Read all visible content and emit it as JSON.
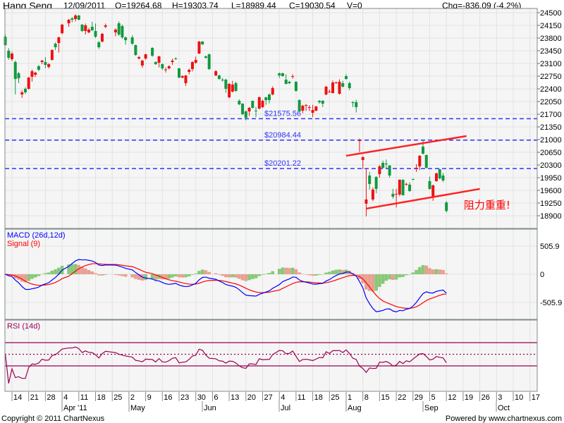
{
  "header": {
    "title": "Hang Seng",
    "date": "12/09/2011",
    "open": "O=19264.68",
    "high": "H=19303.74",
    "low": "L=18989.44",
    "close": "C=19030.54",
    "volume": "V=0",
    "change": "Chg=-836.09 (-4.2%)"
  },
  "footer": {
    "copyright": "Copyright © 2011 ChartNexus",
    "powered": "Powered by www.chartnexus.com"
  },
  "colors": {
    "up": "#ee1111",
    "down": "#109a40",
    "level_line": "#3333ff",
    "trend_line": "#ff2222",
    "macd": "#0000ff",
    "signal": "#ff0000",
    "hist_rise": "#88c878",
    "hist_fall": "#e8a090",
    "rsi": "#990055"
  },
  "chart_data": [
    {
      "type": "candlestick",
      "panel": "price",
      "ylim": [
        18900,
        24500
      ],
      "yticks": [
        18900,
        19250,
        19600,
        19950,
        20300,
        20650,
        21000,
        21350,
        21700,
        22050,
        22400,
        22750,
        23100,
        23450,
        23800,
        24150,
        24500
      ],
      "grid": true,
      "candle_fields": [
        "date",
        "open",
        "high",
        "low",
        "close"
      ],
      "candles": [
        [
          "2011-03-10",
          23839,
          23900,
          23580,
          23606
        ],
        [
          "2011-03-11",
          23450,
          23520,
          23200,
          23256
        ],
        [
          "2011-03-14",
          23217,
          23420,
          23170,
          23372
        ],
        [
          "2011-03-15",
          23139,
          23180,
          22245,
          22673
        ],
        [
          "2011-03-16",
          22828,
          22870,
          22556,
          22692
        ],
        [
          "2011-03-17",
          22245,
          22360,
          22148,
          22303
        ],
        [
          "2011-03-18",
          22400,
          22440,
          22260,
          22303
        ],
        [
          "2011-03-21",
          22400,
          22730,
          22380,
          22711
        ],
        [
          "2011-03-22",
          22731,
          22930,
          22600,
          22886
        ],
        [
          "2011-03-23",
          22789,
          22870,
          22730,
          22847
        ],
        [
          "2011-03-24",
          23023,
          23060,
          22890,
          22925
        ],
        [
          "2011-03-25",
          23139,
          23200,
          23080,
          23178
        ],
        [
          "2011-03-28",
          23139,
          23275,
          22970,
          23061
        ],
        [
          "2011-03-29",
          23003,
          23110,
          22960,
          23081
        ],
        [
          "2011-03-30",
          23198,
          23490,
          23180,
          23470
        ],
        [
          "2011-03-31",
          23645,
          23680,
          23470,
          23547
        ],
        [
          "2011-04-01",
          23664,
          23840,
          23400,
          23820
        ],
        [
          "2011-04-04",
          23936,
          24190,
          23900,
          24170
        ],
        [
          "2011-04-06",
          24208,
          24330,
          24110,
          24306
        ],
        [
          "2011-04-07",
          24344,
          24380,
          24230,
          24306
        ],
        [
          "2011-04-08",
          24325,
          24460,
          24260,
          24422
        ],
        [
          "2011-04-11",
          24422,
          24440,
          24290,
          24306
        ],
        [
          "2011-04-12",
          24170,
          24190,
          23970,
          23995
        ],
        [
          "2011-04-13",
          23995,
          24200,
          23900,
          24150
        ],
        [
          "2011-04-14",
          23956,
          24080,
          23930,
          24033
        ],
        [
          "2011-04-15",
          24111,
          24250,
          23990,
          24014
        ],
        [
          "2011-04-18",
          23995,
          24200,
          23800,
          23839
        ],
        [
          "2011-04-19",
          23684,
          23720,
          23500,
          23547
        ],
        [
          "2011-04-20",
          23703,
          23940,
          23680,
          23917
        ],
        [
          "2011-04-21",
          24111,
          24200,
          24070,
          24150
        ],
        [
          "2011-04-26",
          23956,
          24070,
          23850,
          24033
        ],
        [
          "2011-04-27",
          24208,
          24260,
          23860,
          23897
        ],
        [
          "2011-04-28",
          24131,
          24170,
          23780,
          23820
        ],
        [
          "2011-04-29",
          23820,
          23840,
          23620,
          23742
        ],
        [
          "2011-05-03",
          23820,
          23880,
          23610,
          23645
        ],
        [
          "2011-05-04",
          23606,
          23620,
          23310,
          23334
        ],
        [
          "2011-05-05",
          23236,
          23310,
          23210,
          23275
        ],
        [
          "2011-05-06",
          23042,
          23200,
          22980,
          23178
        ],
        [
          "2011-05-09",
          23236,
          23370,
          23200,
          23353
        ],
        [
          "2011-05-11",
          23528,
          23550,
          23280,
          23314
        ],
        [
          "2011-05-12",
          23139,
          23160,
          23060,
          23081
        ],
        [
          "2011-05-13",
          23120,
          23310,
          22990,
          23295
        ],
        [
          "2011-05-16",
          23081,
          23100,
          22920,
          22964
        ],
        [
          "2011-05-17",
          22925,
          22990,
          22850,
          22935
        ],
        [
          "2011-05-18",
          22964,
          23050,
          22940,
          23023
        ],
        [
          "2011-05-19",
          23139,
          23230,
          23060,
          23178
        ],
        [
          "2011-05-20",
          23236,
          23270,
          23200,
          23217
        ],
        [
          "2011-05-23",
          22964,
          22980,
          22690,
          22711
        ],
        [
          "2011-05-24",
          22711,
          22780,
          22690,
          22750
        ],
        [
          "2011-05-25",
          22556,
          22780,
          22480,
          22770
        ],
        [
          "2011-05-26",
          22867,
          22960,
          22800,
          22925
        ],
        [
          "2011-05-27",
          22945,
          23160,
          22880,
          23139
        ],
        [
          "2011-05-30",
          23120,
          23290,
          23090,
          23198
        ],
        [
          "2011-05-31",
          23372,
          23720,
          23360,
          23703
        ],
        [
          "2011-06-01",
          23703,
          23720,
          23610,
          23625
        ],
        [
          "2011-06-02",
          23295,
          23320,
          23230,
          23256
        ],
        [
          "2011-06-03",
          23353,
          23370,
          22920,
          22945
        ],
        [
          "2011-06-07",
          22770,
          22920,
          22750,
          22886
        ],
        [
          "2011-06-08",
          22770,
          22790,
          22650,
          22673
        ],
        [
          "2011-06-09",
          22653,
          22700,
          22600,
          22634
        ],
        [
          "2011-06-10",
          22653,
          22680,
          22290,
          22400
        ],
        [
          "2011-06-13",
          22167,
          22560,
          22140,
          22536
        ],
        [
          "2011-06-14",
          22323,
          22620,
          22300,
          22517
        ],
        [
          "2011-06-15",
          22556,
          22600,
          22320,
          22342
        ],
        [
          "2011-06-16",
          22070,
          22110,
          21950,
          21973
        ],
        [
          "2011-06-17",
          21992,
          22000,
          21680,
          21701
        ],
        [
          "2011-06-20",
          21778,
          21800,
          21530,
          21603
        ],
        [
          "2011-06-21",
          21778,
          21900,
          21650,
          21876
        ],
        [
          "2011-06-22",
          22070,
          22080,
          21860,
          21876
        ],
        [
          "2011-06-23",
          21800,
          21900,
          21620,
          21790
        ],
        [
          "2011-06-24",
          21856,
          22190,
          21830,
          22167
        ],
        [
          "2011-06-27",
          21895,
          22100,
          21870,
          22070
        ],
        [
          "2011-06-28",
          22167,
          22180,
          21960,
          22089
        ],
        [
          "2011-06-29",
          22245,
          22270,
          22000,
          22089
        ],
        [
          "2011-06-30",
          22245,
          22470,
          22220,
          22420
        ],
        [
          "2011-07-04",
          22828,
          22850,
          22700,
          22770
        ],
        [
          "2011-07-05",
          22828,
          22850,
          22740,
          22750
        ],
        [
          "2011-07-06",
          22653,
          22800,
          22520,
          22536
        ],
        [
          "2011-07-07",
          22595,
          22620,
          22530,
          22556
        ],
        [
          "2011-07-08",
          22731,
          22800,
          22680,
          22750
        ],
        [
          "2011-07-11",
          22595,
          22610,
          22320,
          22342
        ],
        [
          "2011-07-12",
          22089,
          22110,
          21760,
          21778
        ],
        [
          "2011-07-13",
          21798,
          21960,
          21730,
          21934
        ],
        [
          "2011-07-14",
          21940,
          21980,
          21790,
          21953
        ],
        [
          "2011-07-15",
          21890,
          21950,
          21790,
          21895
        ],
        [
          "2011-07-18",
          21739,
          21960,
          21620,
          21817
        ],
        [
          "2011-07-19",
          21798,
          21930,
          21780,
          21914
        ],
        [
          "2011-07-20",
          22070,
          22090,
          21990,
          22031
        ],
        [
          "2011-07-21",
          22070,
          22090,
          21900,
          21992
        ],
        [
          "2011-07-22",
          22245,
          22480,
          22220,
          22459
        ],
        [
          "2011-07-25",
          22310,
          22380,
          22290,
          22323
        ],
        [
          "2011-07-26",
          22284,
          22630,
          22270,
          22575
        ],
        [
          "2011-07-27",
          22570,
          22600,
          22540,
          22575
        ],
        [
          "2011-07-28",
          22264,
          22660,
          22240,
          22595
        ],
        [
          "2011-07-29",
          22556,
          22620,
          22440,
          22459
        ],
        [
          "2011-08-01",
          22750,
          22800,
          22650,
          22673
        ],
        [
          "2011-08-02",
          22556,
          22600,
          22360,
          22420
        ],
        [
          "2011-08-03",
          22031,
          22060,
          21900,
          22010
        ],
        [
          "2011-08-04",
          22031,
          22100,
          21750,
          21895
        ],
        [
          "2011-08-05",
          20960,
          21030,
          20660,
          20981
        ],
        [
          "2011-08-08",
          20437,
          20540,
          20180,
          20515
        ],
        [
          "2011-08-09",
          19232,
          20184,
          18880,
          19348
        ],
        [
          "2011-08-10",
          20009,
          20110,
          19620,
          19776
        ],
        [
          "2011-08-11",
          19348,
          19680,
          19300,
          19621
        ],
        [
          "2011-08-12",
          19970,
          19990,
          19520,
          19640
        ],
        [
          "2011-08-15",
          20048,
          20300,
          19950,
          20262
        ],
        [
          "2011-08-16",
          20359,
          20420,
          20200,
          20223
        ],
        [
          "2011-08-17",
          20340,
          20450,
          20210,
          20320
        ],
        [
          "2011-08-18",
          20282,
          20300,
          19950,
          20009
        ],
        [
          "2011-08-19",
          19504,
          19640,
          19370,
          19426
        ],
        [
          "2011-08-22",
          19490,
          19640,
          19130,
          19504
        ],
        [
          "2011-08-23",
          19485,
          19900,
          19440,
          19893
        ],
        [
          "2011-08-24",
          19893,
          19900,
          19460,
          19465
        ],
        [
          "2011-08-25",
          19770,
          19810,
          19730,
          19776
        ],
        [
          "2011-08-26",
          19757,
          19820,
          19560,
          19582
        ],
        [
          "2011-08-29",
          19912,
          19920,
          19880,
          19900
        ],
        [
          "2011-08-30",
          20215,
          20320,
          20110,
          20223
        ],
        [
          "2011-08-31",
          20262,
          20570,
          20160,
          20554
        ],
        [
          "2011-09-01",
          20806,
          20980,
          20590,
          20612
        ],
        [
          "2011-09-02",
          20573,
          20590,
          20200,
          20223
        ],
        [
          "2011-09-05",
          19854,
          19980,
          19620,
          19640
        ],
        [
          "2011-09-06",
          19426,
          19760,
          19310,
          19737
        ],
        [
          "2011-09-07",
          19854,
          20090,
          19840,
          20068
        ],
        [
          "2011-09-08",
          20184,
          20190,
          19900,
          19932
        ],
        [
          "2011-09-09",
          20009,
          20080,
          19830,
          19873
        ],
        [
          "2011-09-12",
          19264.68,
          19303.74,
          18989.44,
          19030.54
        ]
      ],
      "levels": [
        {
          "value": 21575.56,
          "label": "$21575.56"
        },
        {
          "value": 20984.44,
          "label": "$20984.44"
        },
        {
          "value": 20201.22,
          "label": "$20201.22"
        }
      ],
      "trend_lines": [
        {
          "from": [
            "2011-08-01",
            20554
          ],
          "to": [
            "2011-09-20",
            21098
          ]
        },
        {
          "from": [
            "2011-08-09",
            19096
          ],
          "to": [
            "2011-09-26",
            19640
          ]
        }
      ],
      "annotation": {
        "text": "阻力重重!",
        "date": "2011-09-19",
        "price": 19230
      }
    },
    {
      "type": "line",
      "panel": "macd",
      "legend": [
        "MACD (26d,12d)",
        "Signal (9)"
      ],
      "params": {
        "slow": 26,
        "fast": 12,
        "signal": 9
      },
      "ylim": [
        -1000,
        800
      ],
      "yticks": [
        {
          "v": 505.9,
          "label": "505.9"
        },
        {
          "v": 0,
          "label": "0"
        },
        {
          "v": -505.9,
          "label": "-505.9"
        }
      ],
      "histogram": true
    },
    {
      "type": "line",
      "panel": "rsi",
      "legend": [
        "RSI (14d)"
      ],
      "period": 14,
      "ylim": [
        0,
        100
      ],
      "bands": [
        70,
        50,
        30
      ]
    }
  ],
  "xaxis": {
    "weeks_start": "2011-03-14",
    "day_labels": [
      "14",
      "21",
      "28",
      "4",
      "11",
      "18",
      "25",
      "2",
      "9",
      "16",
      "23",
      "30",
      "6",
      "13",
      "20",
      "27",
      "4",
      "11",
      "18",
      "25",
      "1",
      "8",
      "15",
      "22",
      "29",
      "5",
      "12",
      "19",
      "26",
      "3",
      "10",
      "17"
    ],
    "months": [
      {
        "label": "Apr '11",
        "date": "2011-04-04"
      },
      {
        "label": "May",
        "date": "2011-05-02"
      },
      {
        "label": "Jun",
        "date": "2011-06-01"
      },
      {
        "label": "Jul",
        "date": "2011-07-04"
      },
      {
        "label": "Aug",
        "date": "2011-08-01"
      },
      {
        "label": "Sep",
        "date": "2011-09-01"
      },
      {
        "label": "Oct",
        "date": "2011-10-03"
      }
    ]
  }
}
